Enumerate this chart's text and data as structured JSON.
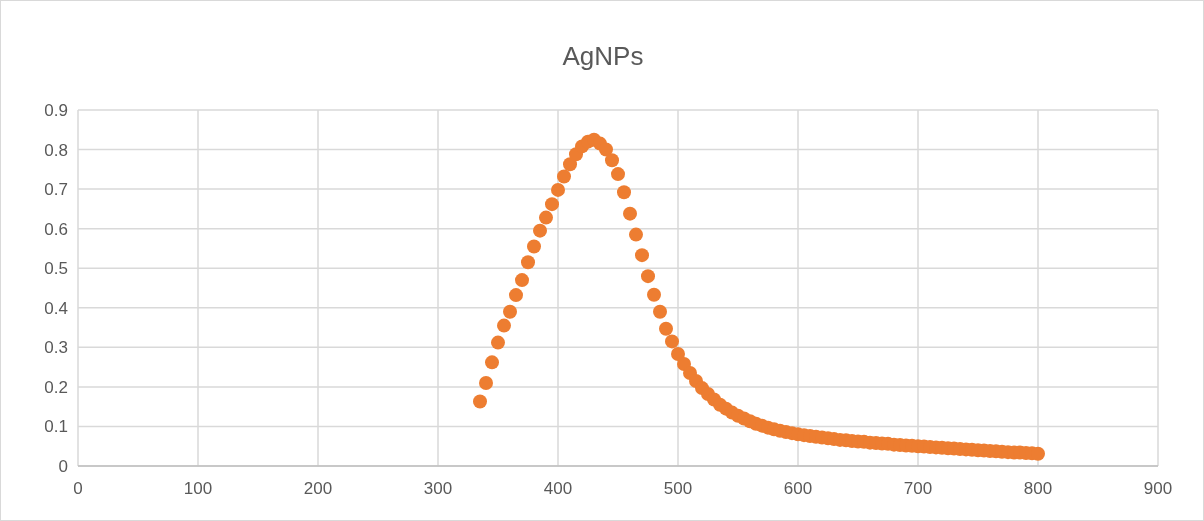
{
  "chart_data": {
    "type": "scatter",
    "title": "AgNPs",
    "x": [
      335,
      340,
      345,
      350,
      355,
      360,
      365,
      370,
      375,
      380,
      385,
      390,
      395,
      400,
      405,
      410,
      415,
      420,
      425,
      430,
      435,
      440,
      445,
      450,
      455,
      460,
      465,
      470,
      475,
      480,
      485,
      490,
      495,
      500,
      505,
      510,
      515,
      520,
      525,
      530,
      535,
      540,
      545,
      550,
      555,
      560,
      565,
      570,
      575,
      580,
      585,
      590,
      595,
      600,
      605,
      610,
      615,
      620,
      625,
      630,
      635,
      640,
      645,
      650,
      655,
      660,
      665,
      670,
      675,
      680,
      685,
      690,
      695,
      700,
      705,
      710,
      715,
      720,
      725,
      730,
      735,
      740,
      745,
      750,
      755,
      760,
      765,
      770,
      775,
      780,
      785,
      790,
      795,
      800
    ],
    "series": [
      {
        "color": "#ed7d31",
        "values": [
          0.163,
          0.21,
          0.262,
          0.312,
          0.355,
          0.39,
          0.432,
          0.47,
          0.515,
          0.555,
          0.595,
          0.628,
          0.662,
          0.698,
          0.732,
          0.763,
          0.788,
          0.808,
          0.82,
          0.825,
          0.815,
          0.8,
          0.773,
          0.738,
          0.692,
          0.638,
          0.585,
          0.533,
          0.48,
          0.433,
          0.39,
          0.347,
          0.315,
          0.283,
          0.258,
          0.235,
          0.215,
          0.197,
          0.182,
          0.168,
          0.155,
          0.145,
          0.135,
          0.127,
          0.12,
          0.113,
          0.107,
          0.102,
          0.097,
          0.093,
          0.089,
          0.086,
          0.083,
          0.08,
          0.078,
          0.076,
          0.074,
          0.072,
          0.07,
          0.068,
          0.066,
          0.065,
          0.063,
          0.062,
          0.061,
          0.059,
          0.058,
          0.057,
          0.056,
          0.054,
          0.053,
          0.052,
          0.051,
          0.05,
          0.049,
          0.048,
          0.047,
          0.046,
          0.045,
          0.044,
          0.043,
          0.042,
          0.041,
          0.04,
          0.039,
          0.038,
          0.037,
          0.036,
          0.035,
          0.034,
          0.034,
          0.033,
          0.032,
          0.031
        ]
      }
    ],
    "xlim": [
      0,
      900
    ],
    "xticks": [
      0,
      100,
      200,
      300,
      400,
      500,
      600,
      700,
      800,
      900
    ],
    "ylim": [
      0,
      0.9
    ],
    "yticks": [
      0,
      0.1,
      0.2,
      0.3,
      0.4,
      0.5,
      0.6,
      0.7,
      0.8,
      0.9
    ],
    "grid": true,
    "marker": "circle"
  }
}
